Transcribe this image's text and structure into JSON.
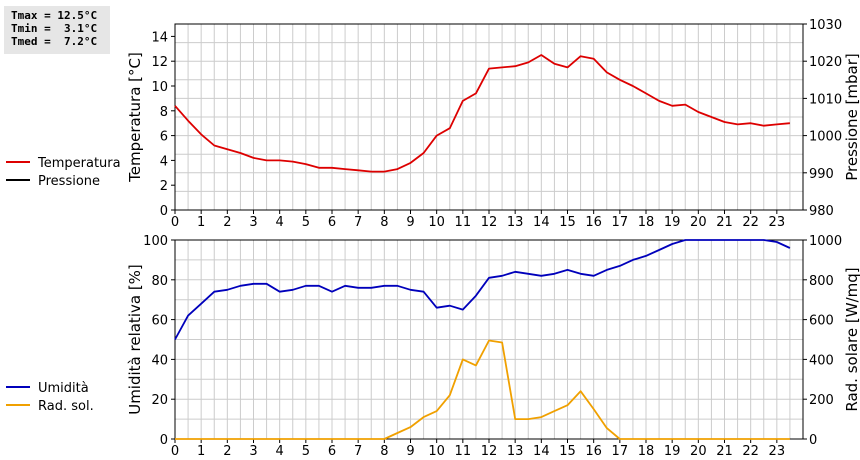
{
  "stats": {
    "line_max": "Tmax = 12.5°C",
    "line_min": "Tmin =  3.1°C",
    "line_med": "Tmed =  7.2°C"
  },
  "colors": {
    "temperature": "#dd0000",
    "pressure": "#000000",
    "humidity": "#0000bb",
    "radiation": "#f0a000",
    "grid": "#cccccc",
    "stats_bg": "#e6e6e6"
  },
  "chart_data": [
    {
      "type": "line",
      "xlabel": "",
      "ylabel": "Temperatura [°C]",
      "y2label": "Pressione [mbar]",
      "xlim": [
        0,
        24
      ],
      "x_ticks": [
        "0",
        "1",
        "2",
        "3",
        "4",
        "5",
        "6",
        "7",
        "8",
        "9",
        "10",
        "11",
        "12",
        "13",
        "14",
        "15",
        "16",
        "17",
        "18",
        "19",
        "20",
        "21",
        "22",
        "23"
      ],
      "ylim": [
        0,
        15
      ],
      "y_ticks": [
        "0",
        "2",
        "4",
        "6",
        "8",
        "10",
        "12",
        "14"
      ],
      "y2lim": [
        980,
        1030
      ],
      "y2_ticks": [
        "980",
        "990",
        "1000",
        "1010",
        "1020",
        "1030"
      ],
      "grid": true,
      "legend": "left",
      "series": [
        {
          "name": "Temperatura",
          "color": "#dd0000",
          "x": [
            0,
            0.5,
            1,
            1.5,
            2,
            2.5,
            3,
            3.5,
            4,
            4.5,
            5,
            5.5,
            6,
            6.5,
            7,
            7.5,
            8,
            8.5,
            9,
            9.5,
            10,
            10.5,
            11,
            11.5,
            12,
            12.5,
            13,
            13.5,
            14,
            14.5,
            15,
            15.5,
            16,
            16.5,
            17,
            17.5,
            18,
            18.5,
            19,
            19.5,
            20,
            20.5,
            21,
            21.5,
            22,
            22.5,
            23,
            23.5
          ],
          "values": [
            8.4,
            7.2,
            6.1,
            5.2,
            4.9,
            4.6,
            4.2,
            4.0,
            4.0,
            3.9,
            3.7,
            3.4,
            3.4,
            3.3,
            3.2,
            3.1,
            3.1,
            3.3,
            3.8,
            4.6,
            6.0,
            6.6,
            8.8,
            9.4,
            11.4,
            11.5,
            11.6,
            11.9,
            12.5,
            11.8,
            11.5,
            12.4,
            12.2,
            11.1,
            10.5,
            10.0,
            9.4,
            8.8,
            8.4,
            8.5,
            7.9,
            7.5,
            7.1,
            6.9,
            7.0,
            6.8,
            6.9,
            7.0
          ]
        },
        {
          "name": "Pressione",
          "color": "#000000",
          "x": [],
          "values": []
        }
      ]
    },
    {
      "type": "line",
      "xlabel": "",
      "ylabel": "Umidità relativa [%]",
      "y2label": "Rad. solare [W/mq]",
      "xlim": [
        0,
        24
      ],
      "x_ticks": [
        "0",
        "1",
        "2",
        "3",
        "4",
        "5",
        "6",
        "7",
        "8",
        "9",
        "10",
        "11",
        "12",
        "13",
        "14",
        "15",
        "16",
        "17",
        "18",
        "19",
        "20",
        "21",
        "22",
        "23"
      ],
      "ylim": [
        0,
        100
      ],
      "y_ticks": [
        "0",
        "20",
        "40",
        "60",
        "80",
        "100"
      ],
      "y2lim": [
        0,
        1000
      ],
      "y2_ticks": [
        "0",
        "200",
        "400",
        "600",
        "800",
        "1000"
      ],
      "grid": true,
      "legend": "left",
      "series": [
        {
          "name": "Umidità",
          "color": "#0000bb",
          "x": [
            0,
            0.5,
            1,
            1.5,
            2,
            2.5,
            3,
            3.5,
            4,
            4.5,
            5,
            5.5,
            6,
            6.5,
            7,
            7.5,
            8,
            8.5,
            9,
            9.5,
            10,
            10.5,
            11,
            11.5,
            12,
            12.5,
            13,
            13.5,
            14,
            14.5,
            15,
            15.5,
            16,
            16.5,
            17,
            17.5,
            18,
            18.5,
            19,
            19.5,
            20,
            20.5,
            21,
            21.5,
            22,
            22.5,
            23,
            23.5
          ],
          "values": [
            50,
            62,
            68,
            74,
            75,
            77,
            78,
            78,
            74,
            75,
            77,
            77,
            74,
            77,
            76,
            76,
            77,
            77,
            75,
            74,
            66,
            67,
            65,
            72,
            81,
            82,
            84,
            83,
            82,
            83,
            85,
            83,
            82,
            85,
            87,
            90,
            92,
            95,
            98,
            100,
            100,
            100,
            100,
            100,
            100,
            100,
            99,
            96
          ]
        },
        {
          "name": "Rad. sol.",
          "color": "#f0a000",
          "x": [
            0,
            0.5,
            1,
            1.5,
            2,
            2.5,
            3,
            3.5,
            4,
            4.5,
            5,
            5.5,
            6,
            6.5,
            7,
            7.5,
            8,
            8.5,
            9,
            9.5,
            10,
            10.5,
            11,
            11.5,
            12,
            12.5,
            13,
            13.5,
            14,
            14.5,
            15,
            15.5,
            16,
            16.5,
            17,
            17.5,
            18,
            18.5,
            19,
            19.5,
            20,
            20.5,
            21,
            21.5,
            22,
            22.5,
            23,
            23.5
          ],
          "values": [
            0,
            0,
            0,
            0,
            0,
            0,
            0,
            0,
            0,
            0,
            0,
            0,
            0,
            0,
            0,
            0,
            0,
            30,
            60,
            110,
            140,
            220,
            400,
            370,
            495,
            485,
            100,
            100,
            110,
            140,
            170,
            240,
            150,
            55,
            0,
            0,
            0,
            0,
            0,
            0,
            0,
            0,
            0,
            0,
            0,
            0,
            0,
            0
          ]
        }
      ]
    }
  ]
}
